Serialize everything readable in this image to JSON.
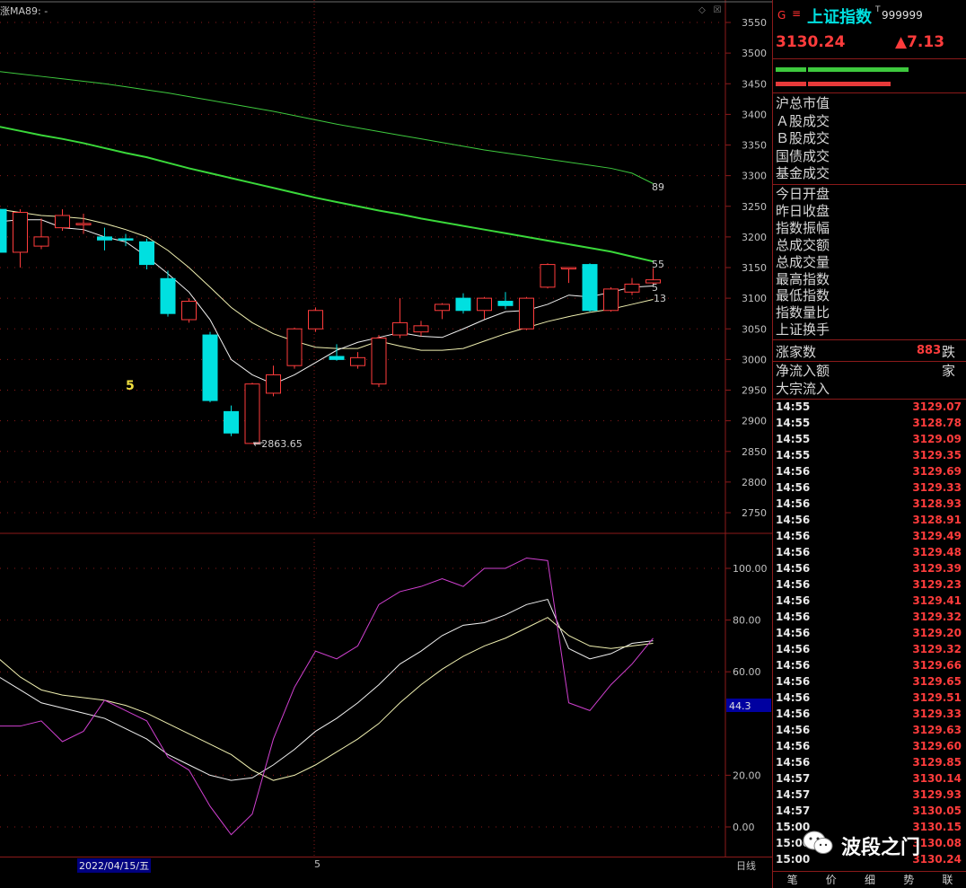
{
  "header": {
    "ma_caption": "涨MA89: -",
    "label_5": "5",
    "low_annotation": "2863.65",
    "ma_labels": {
      "ma89": "89",
      "ma55": "55",
      "ma5": "5",
      "ma13": "13"
    }
  },
  "window_buttons": {
    "restore": "◇",
    "close": "☒"
  },
  "price_axis": {
    "ticks": [
      "3550",
      "3500",
      "3450",
      "3400",
      "3350",
      "3300",
      "3250",
      "3200",
      "3150",
      "3100",
      "3050",
      "3000",
      "2950",
      "2900",
      "2850",
      "2800",
      "2750"
    ]
  },
  "indicator_axis": {
    "ticks": [
      "100.00",
      "80.00",
      "60.00",
      "20.00",
      "0.00"
    ],
    "current_value": "44.3"
  },
  "bottom_bar": {
    "date": "2022/04/15/五",
    "marker": "5",
    "period": "日线"
  },
  "colors": {
    "up": "#ff3c3c",
    "down": "#00e0e0",
    "ma89": "#3ec93e",
    "ma55": "#3ad83a",
    "ma5": "#f2f2f2",
    "ma13": "#f0f0b0",
    "grid": "#8b1a1a",
    "k_line": "#f0f0f0",
    "d_line": "#f0f0b0",
    "j_line": "#d040d0"
  },
  "right_panel": {
    "marker": "G",
    "menu_icon": "≡",
    "index_name": "上证指数",
    "superscript": "T",
    "code": "999999",
    "price": "3130.24",
    "change": "▲7.13",
    "summary_labels": [
      "沪总市值",
      "Ａ股成交",
      "Ｂ股成交",
      "国债成交",
      "基金成交"
    ],
    "stats_labels": [
      "今日开盘",
      "昨日收盘",
      "指数振幅",
      "总成交额",
      "总成交量",
      "最高指数",
      "最低指数",
      "指数量比",
      "上证换手"
    ],
    "rise_label": "涨家数",
    "rise_value": "883",
    "fall_label": "跌家",
    "flow_labels": [
      "净流入额",
      "大宗流入"
    ],
    "ticks": [
      {
        "time": "14:55",
        "price": "3129.07"
      },
      {
        "time": "14:55",
        "price": "3128.78"
      },
      {
        "time": "14:55",
        "price": "3129.09"
      },
      {
        "time": "14:55",
        "price": "3129.35"
      },
      {
        "time": "14:56",
        "price": "3129.69"
      },
      {
        "time": "14:56",
        "price": "3129.33"
      },
      {
        "time": "14:56",
        "price": "3128.93"
      },
      {
        "time": "14:56",
        "price": "3128.91"
      },
      {
        "time": "14:56",
        "price": "3129.49"
      },
      {
        "time": "14:56",
        "price": "3129.48"
      },
      {
        "time": "14:56",
        "price": "3129.39"
      },
      {
        "time": "14:56",
        "price": "3129.23"
      },
      {
        "time": "14:56",
        "price": "3129.41"
      },
      {
        "time": "14:56",
        "price": "3129.32"
      },
      {
        "time": "14:56",
        "price": "3129.20"
      },
      {
        "time": "14:56",
        "price": "3129.32"
      },
      {
        "time": "14:56",
        "price": "3129.66"
      },
      {
        "time": "14:56",
        "price": "3129.65"
      },
      {
        "time": "14:56",
        "price": "3129.51"
      },
      {
        "time": "14:56",
        "price": "3129.33"
      },
      {
        "time": "14:56",
        "price": "3129.63"
      },
      {
        "time": "14:56",
        "price": "3129.60"
      },
      {
        "time": "14:56",
        "price": "3129.85"
      },
      {
        "time": "14:57",
        "price": "3130.14"
      },
      {
        "time": "14:57",
        "price": "3129.93"
      },
      {
        "time": "14:57",
        "price": "3130.05"
      },
      {
        "time": "15:00",
        "price": "3130.15"
      },
      {
        "time": "15:00",
        "price": "3130.08"
      },
      {
        "time": "15:00",
        "price": "3130.24"
      }
    ],
    "tabs": [
      "笔",
      "价",
      "细",
      "势",
      "联"
    ]
  },
  "watermark": {
    "text": "波段之门",
    "icon": "wechat-icon"
  },
  "chart_data": {
    "type": "candlestick",
    "price_ylim": [
      2700,
      3575
    ],
    "indicator_ylim": [
      -10,
      110
    ],
    "candles": [
      {
        "o": 3245,
        "c": 3175,
        "h": 3250,
        "l": 3170
      },
      {
        "o": 3175,
        "c": 3240,
        "h": 3245,
        "l": 3150
      },
      {
        "o": 3185,
        "c": 3200,
        "h": 3230,
        "l": 3180
      },
      {
        "o": 3215,
        "c": 3235,
        "h": 3245,
        "l": 3210
      },
      {
        "o": 3220,
        "c": 3222,
        "h": 3238,
        "l": 3205
      },
      {
        "o": 3200,
        "c": 3195,
        "h": 3215,
        "l": 3178
      },
      {
        "o": 3197,
        "c": 3195,
        "h": 3205,
        "l": 3185
      },
      {
        "o": 3192,
        "c": 3155,
        "h": 3197,
        "l": 3147
      },
      {
        "o": 3132,
        "c": 3075,
        "h": 3145,
        "l": 3070
      },
      {
        "o": 3065,
        "c": 3095,
        "h": 3100,
        "l": 3060
      },
      {
        "o": 3040,
        "c": 2933,
        "h": 3045,
        "l": 2930
      },
      {
        "o": 2915,
        "c": 2880,
        "h": 2925,
        "l": 2875
      },
      {
        "o": 2863,
        "c": 2960,
        "h": 2962,
        "l": 2863
      },
      {
        "o": 2945,
        "c": 2975,
        "h": 2990,
        "l": 2940
      },
      {
        "o": 2990,
        "c": 3050,
        "h": 3052,
        "l": 2985
      },
      {
        "o": 3050,
        "c": 3080,
        "h": 3085,
        "l": 3045
      },
      {
        "o": 3005,
        "c": 3000,
        "h": 3025,
        "l": 2998
      },
      {
        "o": 2990,
        "c": 3003,
        "h": 3012,
        "l": 2985
      },
      {
        "o": 2960,
        "c": 3035,
        "h": 3040,
        "l": 2955
      },
      {
        "o": 3040,
        "c": 3060,
        "h": 3100,
        "l": 3035
      },
      {
        "o": 3045,
        "c": 3055,
        "h": 3063,
        "l": 3038
      },
      {
        "o": 3080,
        "c": 3090,
        "h": 3092,
        "l": 3066
      },
      {
        "o": 3100,
        "c": 3080,
        "h": 3108,
        "l": 3075
      },
      {
        "o": 3080,
        "c": 3100,
        "h": 3102,
        "l": 3066
      },
      {
        "o": 3095,
        "c": 3088,
        "h": 3110,
        "l": 3082
      },
      {
        "o": 3050,
        "c": 3100,
        "h": 3102,
        "l": 3048
      },
      {
        "o": 3118,
        "c": 3155,
        "h": 3157,
        "l": 3116
      },
      {
        "o": 3148,
        "c": 3150,
        "h": 3150,
        "l": 3125
      },
      {
        "o": 3155,
        "c": 3080,
        "h": 3157,
        "l": 3078
      },
      {
        "o": 3080,
        "c": 3115,
        "h": 3118,
        "l": 3078
      },
      {
        "o": 3110,
        "c": 3123,
        "h": 3133,
        "l": 3105
      },
      {
        "o": 3125,
        "c": 3130,
        "h": 3149,
        "l": 3122
      }
    ],
    "ma5": [
      3225,
      3228,
      3228,
      3215,
      3212,
      3200,
      3192,
      3168,
      3140,
      3110,
      3065,
      3000,
      2975,
      2960,
      2975,
      2995,
      3015,
      3028,
      3036,
      3044,
      3038,
      3036,
      3050,
      3065,
      3078,
      3080,
      3090,
      3105,
      3102,
      3110,
      3118,
      3120
    ],
    "ma13": [
      3245,
      3240,
      3235,
      3233,
      3230,
      3222,
      3212,
      3200,
      3178,
      3150,
      3118,
      3085,
      3060,
      3042,
      3030,
      3020,
      3018,
      3018,
      3030,
      3022,
      3015,
      3015,
      3018,
      3030,
      3042,
      3052,
      3062,
      3070,
      3077,
      3082,
      3090,
      3098
    ],
    "ma55": [
      3380,
      3373,
      3366,
      3360,
      3353,
      3345,
      3337,
      3330,
      3321,
      3312,
      3304,
      3296,
      3288,
      3280,
      3272,
      3264,
      3257,
      3250,
      3243,
      3237,
      3230,
      3224,
      3218,
      3212,
      3206,
      3200,
      3194,
      3188,
      3182,
      3176,
      3168,
      3160
    ],
    "ma89": [
      3470,
      3466,
      3462,
      3458,
      3454,
      3450,
      3445,
      3440,
      3435,
      3429,
      3423,
      3417,
      3411,
      3405,
      3398,
      3391,
      3384,
      3378,
      3372,
      3366,
      3360,
      3354,
      3348,
      3342,
      3337,
      3332,
      3327,
      3322,
      3317,
      3312,
      3304,
      3287
    ],
    "k": [
      58,
      53,
      48,
      46,
      44,
      42,
      38,
      34,
      28,
      24,
      20,
      18,
      19,
      24,
      30,
      37,
      42,
      48,
      55,
      63,
      68,
      74,
      78,
      79,
      82,
      86,
      88,
      69,
      65,
      67,
      71,
      72
    ],
    "d": [
      65,
      58,
      53,
      51,
      50,
      49,
      47,
      44,
      40,
      36,
      32,
      28,
      22,
      18,
      20,
      24,
      29,
      34,
      40,
      48,
      55,
      61,
      66,
      70,
      73,
      77,
      81,
      74,
      70,
      69,
      70,
      71
    ],
    "j": [
      39,
      39,
      41,
      33,
      37,
      49,
      45,
      41,
      27,
      22,
      8,
      -3,
      5,
      34,
      54,
      68,
      65,
      70,
      86,
      91,
      93,
      96,
      93,
      100,
      100,
      104,
      103,
      48,
      45,
      55,
      63,
      73
    ]
  }
}
